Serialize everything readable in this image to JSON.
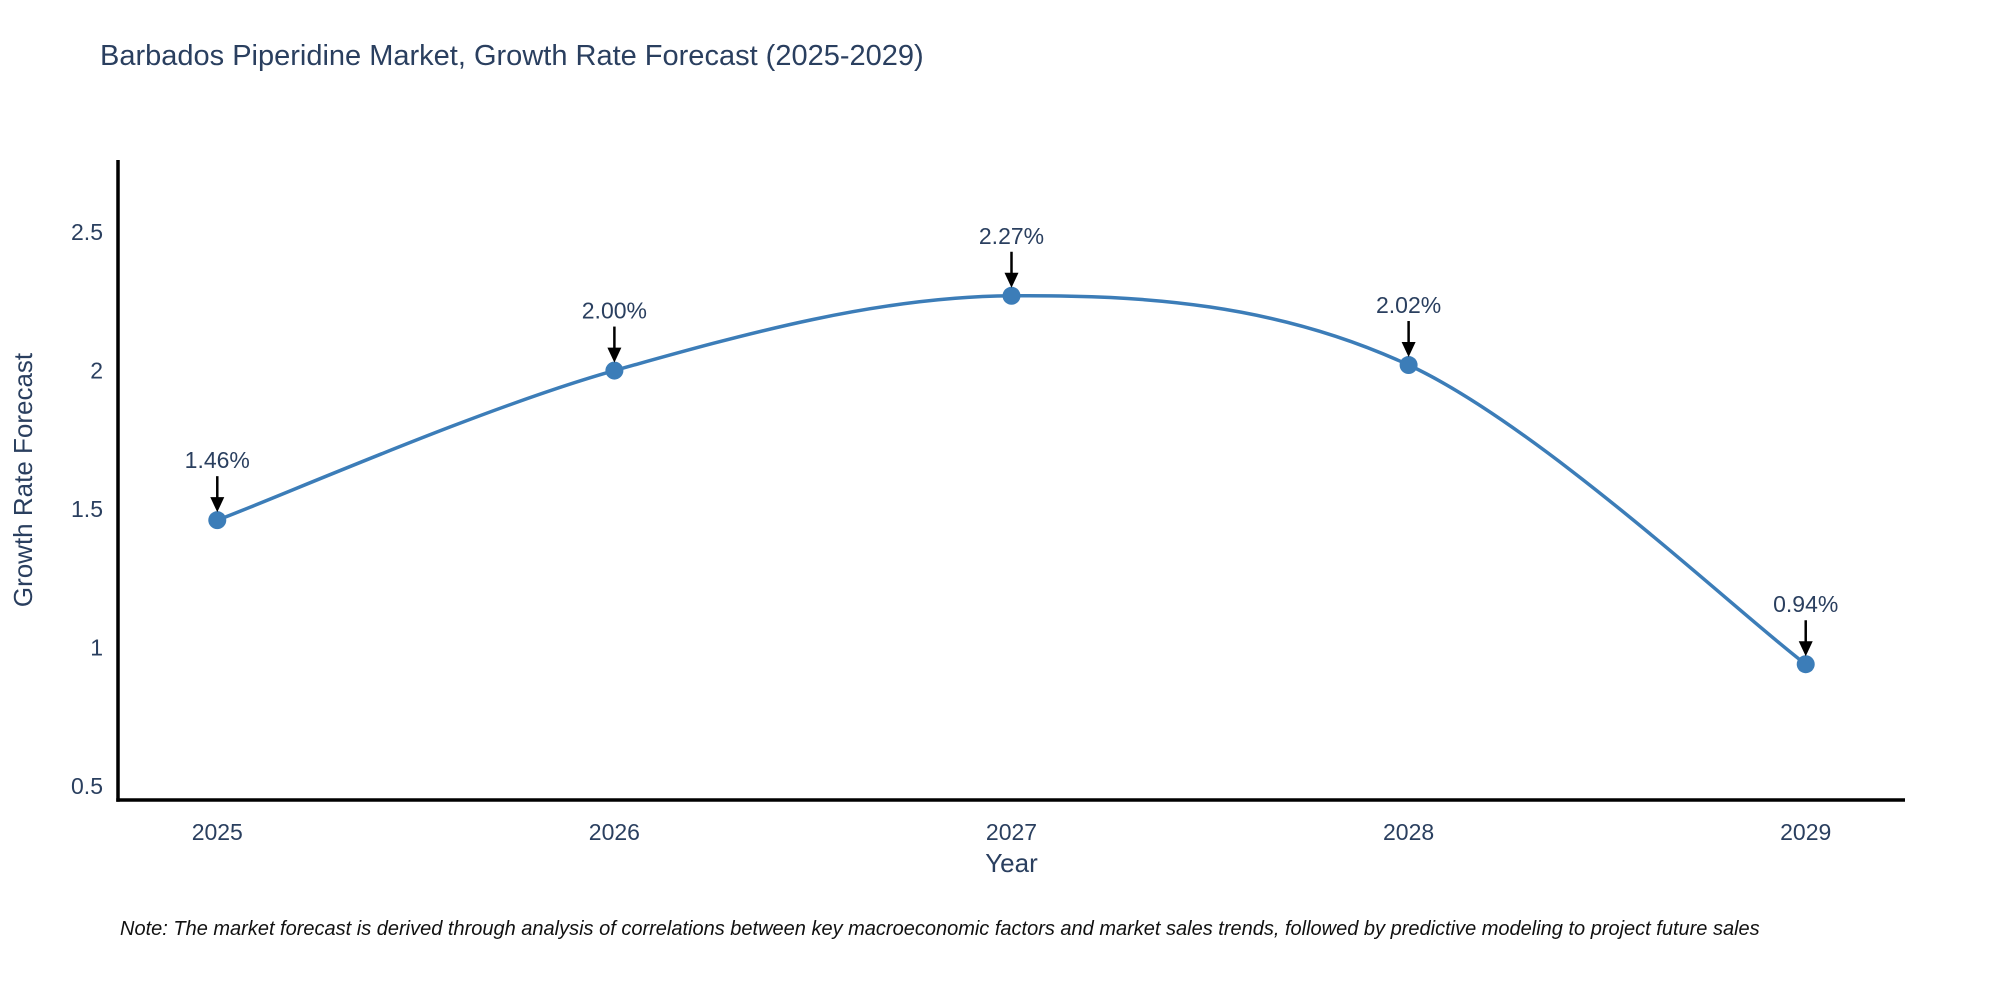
{
  "title": "Barbados Piperidine Market, Growth Rate Forecast (2025-2029)",
  "note": "Note: The market forecast is derived through analysis of correlations between key macroeconomic factors and market sales trends, followed by predictive modeling to project future sales",
  "chart_data": {
    "type": "line",
    "title": "Barbados Piperidine Market, Growth Rate Forecast (2025-2029)",
    "xlabel": "Year",
    "ylabel": "Growth Rate Forecast",
    "x": [
      2025,
      2026,
      2027,
      2028,
      2029
    ],
    "y": [
      1.46,
      2.0,
      2.27,
      2.02,
      0.94
    ],
    "point_labels": [
      "1.46%",
      "2.00%",
      "2.27%",
      "2.02%",
      "0.94%"
    ],
    "xtick_values": [
      2025,
      2026,
      2027,
      2028,
      2029
    ],
    "xtick_labels": [
      "2025",
      "2026",
      "2027",
      "2028",
      "2029"
    ],
    "ytick_values": [
      0.5,
      1,
      1.5,
      2,
      2.5
    ],
    "ytick_labels": [
      "0.5",
      "1",
      "1.5",
      "2",
      "2.5"
    ],
    "xlim": [
      2024.75,
      2029.25
    ],
    "ylim": [
      0.45,
      2.76
    ],
    "line_shape": "spline",
    "grid": false,
    "legend": false,
    "line_color": "#3c7db8",
    "marker_color": "#3c7db8",
    "marker_radius": 9,
    "annotation_arrow_color": "#000000",
    "axis_color": "#000000",
    "text_color": "#2a3f5f"
  }
}
